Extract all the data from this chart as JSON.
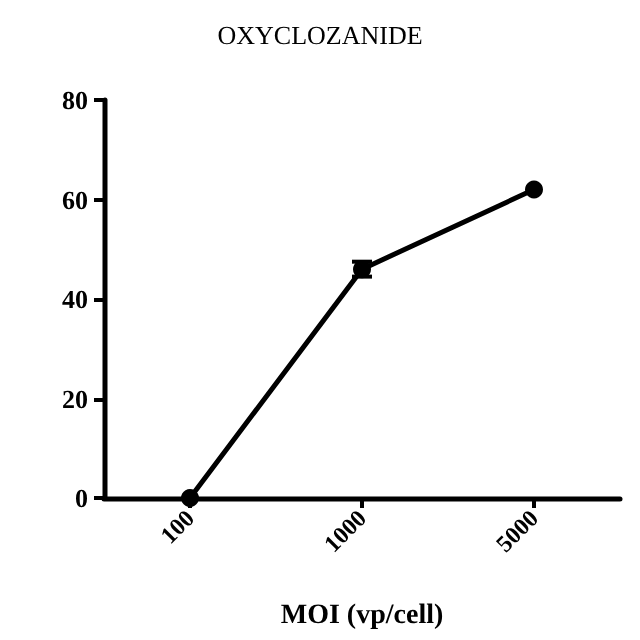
{
  "chart_data": {
    "type": "line",
    "title": "OXYCLOZANIDE",
    "xlabel": "MOI (vp/cell)",
    "categories": [
      "100",
      "1000",
      "5000"
    ],
    "series": [
      {
        "color": "#000000",
        "values": [
          0,
          46,
          62
        ],
        "errors": [
          null,
          1.5,
          null
        ]
      }
    ],
    "ylim": [
      0,
      80
    ],
    "yticks": [
      0,
      20,
      40,
      60,
      80
    ],
    "marker": "circle",
    "line_style": "solid",
    "grid": false
  }
}
